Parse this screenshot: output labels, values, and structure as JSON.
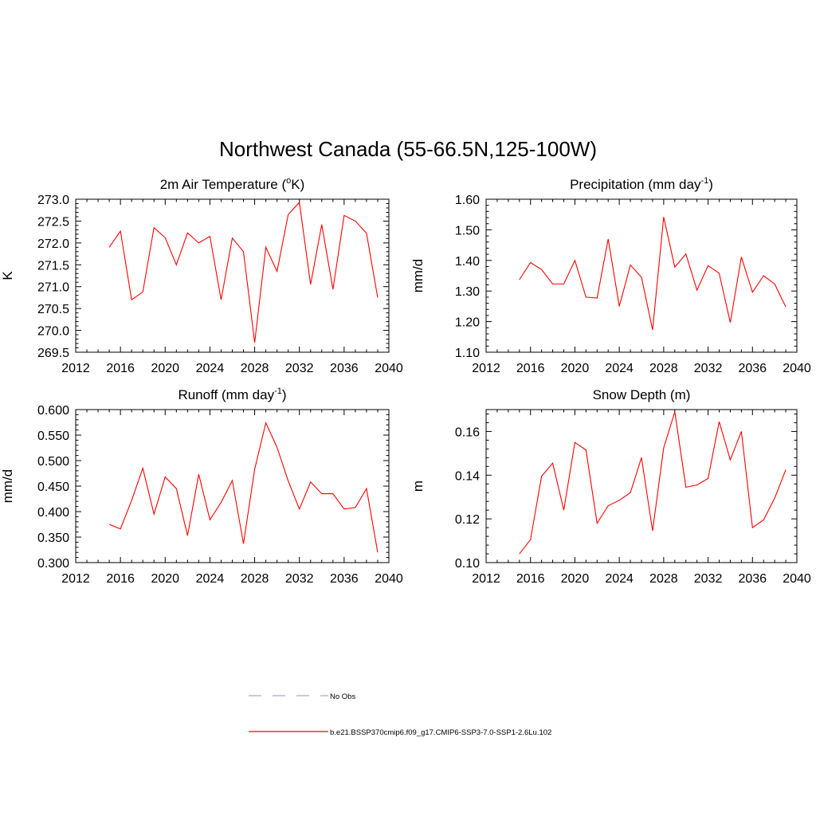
{
  "figure": {
    "title": "Northwest Canada (55-66.5N,125-100W)"
  },
  "legend": {
    "items": [
      {
        "label": "No Obs",
        "style": "dashed",
        "color": "#a8a8e0"
      },
      {
        "label": "b.e21.BSSP370cmip6.f09_g17.CMIP6-SSP3-7.0-SSP1-2.6Lu.102",
        "style": "solid",
        "color": "#ff0000"
      }
    ]
  },
  "chart_data": [
    {
      "type": "line",
      "title": "2m Air Temperature (°K)",
      "title_main": "2m Air Temperature (",
      "title_sup": "o",
      "title_rest": "K)",
      "ylabel": "K",
      "xlim": [
        2012,
        2040
      ],
      "xticks": [
        2012,
        2016,
        2020,
        2024,
        2028,
        2032,
        2036,
        2040
      ],
      "ylim": [
        269.5,
        273.0
      ],
      "yticks": [
        269.5,
        270.0,
        270.5,
        271.0,
        271.5,
        272.0,
        272.5,
        273.0
      ],
      "ytick_decimals": 1,
      "color": "#ff0000",
      "x": [
        2015,
        2016,
        2017,
        2018,
        2019,
        2020,
        2021,
        2022,
        2023,
        2024,
        2025,
        2026,
        2027,
        2028,
        2029,
        2030,
        2031,
        2032,
        2033,
        2034,
        2035,
        2036,
        2037,
        2038,
        2039
      ],
      "y": [
        271.9,
        272.27,
        270.7,
        270.88,
        272.35,
        272.12,
        271.5,
        272.23,
        272.0,
        272.15,
        270.7,
        272.11,
        271.8,
        269.72,
        271.9,
        271.35,
        272.65,
        272.93,
        271.05,
        272.42,
        270.94,
        272.63,
        272.5,
        272.22,
        270.75
      ]
    },
    {
      "type": "line",
      "title": "Precipitation (mm day-1)",
      "title_main": "Precipitation (mm day",
      "title_sup": "-1",
      "title_rest": ")",
      "ylabel": "mm/d",
      "xlim": [
        2012,
        2040
      ],
      "xticks": [
        2012,
        2016,
        2020,
        2024,
        2028,
        2032,
        2036,
        2040
      ],
      "ylim": [
        1.1,
        1.6
      ],
      "yticks": [
        1.1,
        1.2,
        1.3,
        1.4,
        1.5,
        1.6
      ],
      "ytick_decimals": 2,
      "color": "#ff0000",
      "x": [
        2015,
        2016,
        2017,
        2018,
        2019,
        2020,
        2021,
        2022,
        2023,
        2024,
        2025,
        2026,
        2027,
        2028,
        2029,
        2030,
        2031,
        2032,
        2033,
        2034,
        2035,
        2036,
        2037,
        2038,
        2039
      ],
      "y": [
        1.337,
        1.393,
        1.37,
        1.323,
        1.323,
        1.4,
        1.28,
        1.277,
        1.47,
        1.25,
        1.385,
        1.345,
        1.173,
        1.542,
        1.378,
        1.421,
        1.303,
        1.383,
        1.358,
        1.197,
        1.411,
        1.296,
        1.35,
        1.323,
        1.248
      ]
    },
    {
      "type": "line",
      "title": "Runoff (mm day-1)",
      "title_main": "Runoff (mm day",
      "title_sup": "-1",
      "title_rest": ")",
      "ylabel": "mm/d",
      "xlim": [
        2012,
        2040
      ],
      "xticks": [
        2012,
        2016,
        2020,
        2024,
        2028,
        2032,
        2036,
        2040
      ],
      "ylim": [
        0.3,
        0.6
      ],
      "yticks": [
        0.3,
        0.35,
        0.4,
        0.45,
        0.5,
        0.55,
        0.6
      ],
      "ytick_decimals": 3,
      "color": "#ff0000",
      "x": [
        2015,
        2016,
        2017,
        2018,
        2019,
        2020,
        2021,
        2022,
        2023,
        2024,
        2025,
        2026,
        2027,
        2028,
        2029,
        2030,
        2031,
        2032,
        2033,
        2034,
        2035,
        2036,
        2037,
        2038,
        2039
      ],
      "y": [
        0.375,
        0.366,
        0.422,
        0.485,
        0.395,
        0.468,
        0.445,
        0.353,
        0.473,
        0.384,
        0.418,
        0.461,
        0.337,
        0.483,
        0.574,
        0.526,
        0.46,
        0.405,
        0.458,
        0.435,
        0.435,
        0.405,
        0.408,
        0.445,
        0.32
      ]
    },
    {
      "type": "line",
      "title": "Snow Depth (m)",
      "title_main": "Snow Depth (m)",
      "title_sup": "",
      "title_rest": "",
      "ylabel": "m",
      "xlim": [
        2012,
        2040
      ],
      "xticks": [
        2012,
        2016,
        2020,
        2024,
        2028,
        2032,
        2036,
        2040
      ],
      "ylim": [
        0.1,
        0.17
      ],
      "yticks": [
        0.1,
        0.12,
        0.14,
        0.16
      ],
      "ytick_decimals": 2,
      "color": "#ff0000",
      "x": [
        2015,
        2016,
        2017,
        2018,
        2019,
        2020,
        2021,
        2022,
        2023,
        2024,
        2025,
        2026,
        2027,
        2028,
        2029,
        2030,
        2031,
        2032,
        2033,
        2034,
        2035,
        2036,
        2037,
        2038,
        2039
      ],
      "y": [
        0.104,
        0.1105,
        0.1395,
        0.1455,
        0.124,
        0.155,
        0.1515,
        0.118,
        0.126,
        0.1285,
        0.132,
        0.148,
        0.1145,
        0.1525,
        0.169,
        0.1345,
        0.1355,
        0.1385,
        0.1645,
        0.147,
        0.16,
        0.116,
        0.1195,
        0.1295,
        0.1425
      ]
    }
  ]
}
